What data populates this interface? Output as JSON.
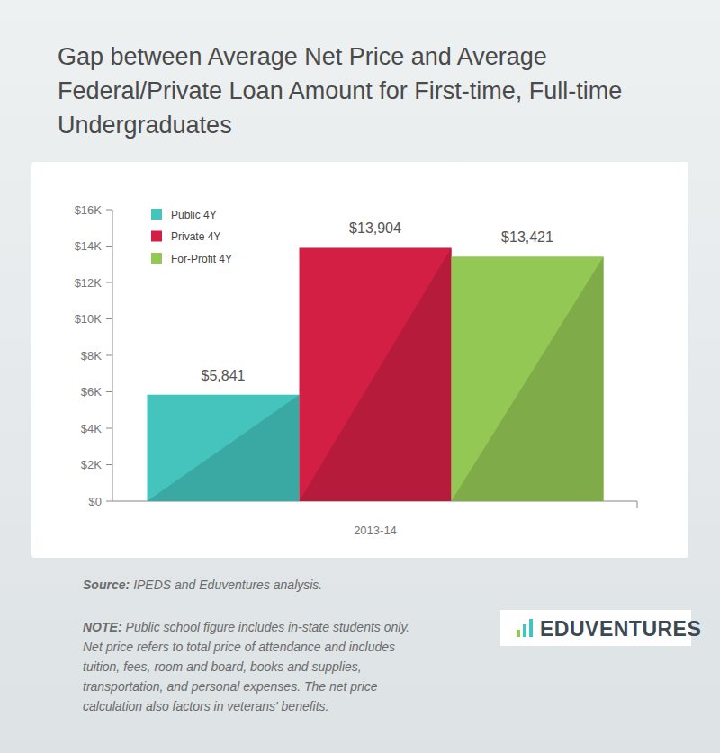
{
  "chart_data": {
    "type": "bar",
    "title": "Gap between Average Net Price and Average Federal/Private Loan Amount for First-time, Full-time Undergraduates",
    "categories": [
      "2013-14"
    ],
    "series": [
      {
        "name": "Public 4Y",
        "color": "#45c4be",
        "values": [
          5841
        ],
        "value_labels": [
          "$5,841"
        ]
      },
      {
        "name": "Private 4Y",
        "color": "#d41f45",
        "values": [
          13904
        ],
        "value_labels": [
          "$13,904"
        ]
      },
      {
        "name": "For-Profit 4Y",
        "color": "#94c855",
        "values": [
          13421
        ],
        "value_labels": [
          "$13,421"
        ]
      }
    ],
    "ylim": [
      0,
      16000
    ],
    "yticks": [
      {
        "value": 0,
        "label": "$0"
      },
      {
        "value": 2000,
        "label": "$2K"
      },
      {
        "value": 4000,
        "label": "$4K"
      },
      {
        "value": 6000,
        "label": "$6K"
      },
      {
        "value": 8000,
        "label": "$8K"
      },
      {
        "value": 10000,
        "label": "$10K"
      },
      {
        "value": 12000,
        "label": "$12K"
      },
      {
        "value": 14000,
        "label": "$14K"
      },
      {
        "value": 16000,
        "label": "$16K"
      }
    ],
    "grid": false,
    "legend": "top-left",
    "data_labels": true,
    "source": {
      "label": "Source:",
      "text": "IPEDS and Eduventures analysis."
    },
    "note": {
      "label": "NOTE:",
      "text": "Public school figure includes in-state students only. Net price refers to total price of attendance and includes tuition, fees, room and board, books and supplies, transportation, and personal expenses. The net price calculation also factors in veterans' benefits."
    },
    "logo": "EDUVENTURES"
  }
}
